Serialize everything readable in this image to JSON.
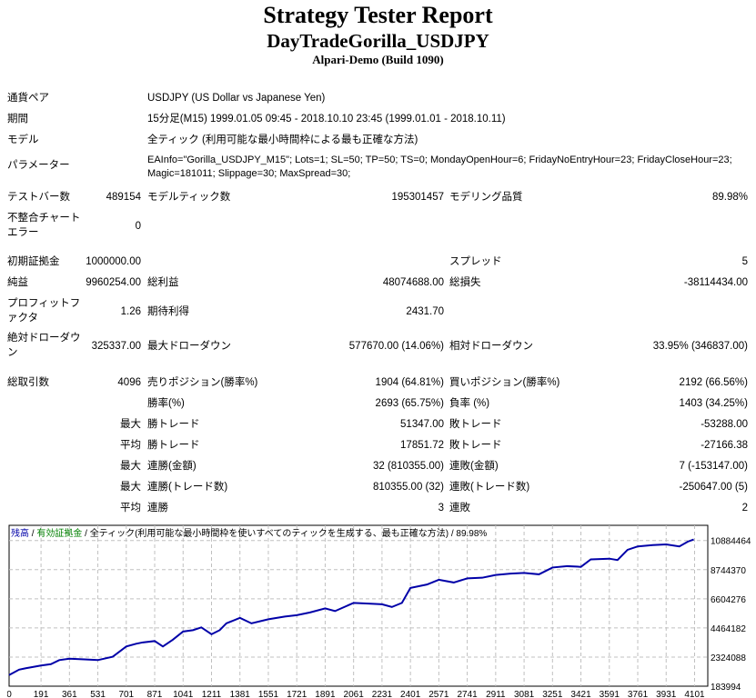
{
  "header": {
    "title": "Strategy Tester Report",
    "ea_name": "DayTradeGorilla_USDJPY",
    "server": "Alpari-Demo (Build 1090)"
  },
  "info": {
    "symbol": {
      "label": "通貨ペア",
      "value": "USDJPY (US Dollar vs Japanese Yen)"
    },
    "period": {
      "label": "期間",
      "value": "15分足(M15) 1999.01.05 09:45 - 2018.10.10 23:45 (1999.01.01 - 2018.10.11)"
    },
    "model": {
      "label": "モデル",
      "value": "全ティック (利用可能な最小時間枠による最も正確な方法)"
    },
    "parameters": {
      "label": "パラメーター",
      "line1": "EAInfo=\"Gorilla_USDJPY_M15\"; Lots=1; SL=50; TP=50; TS=0; MondayOpenHour=6; FridayNoEntryHour=23; FridayCloseHour=23;",
      "line2": "Magic=181011; Slippage=30; MaxSpread=30;"
    }
  },
  "stats": {
    "bars": {
      "label": "テストバー数",
      "value": "489154"
    },
    "ticks": {
      "label": "モデルティック数",
      "value": "195301457"
    },
    "quality": {
      "label": "モデリング品質",
      "value": "89.98%"
    },
    "mismatch": {
      "label1": "不整合チャート",
      "label2": "エラー",
      "value": "0"
    },
    "deposit": {
      "label": "初期証拠金",
      "value": "1000000.00"
    },
    "spread": {
      "label": "スプレッド",
      "value": "5"
    },
    "net_profit": {
      "label": "純益",
      "value": "9960254.00"
    },
    "gross_profit": {
      "label": "総利益",
      "value": "48074688.00"
    },
    "gross_loss": {
      "label": "総損失",
      "value": "-38114434.00"
    },
    "profit_factor": {
      "label1": "プロフィットフ",
      "label2": "ァクタ",
      "value": "1.26"
    },
    "expected_payoff": {
      "label": "期待利得",
      "value": "2431.70"
    },
    "abs_dd": {
      "label1": "絶対ドローダウ",
      "label2": "ン",
      "value": "325337.00"
    },
    "max_dd": {
      "label": "最大ドローダウン",
      "value": "577670.00 (14.06%)"
    },
    "rel_dd": {
      "label": "相対ドローダウン",
      "value": "33.95% (346837.00)"
    },
    "total_trades": {
      "label": "総取引数",
      "value": "4096"
    },
    "short": {
      "label": "売りポジション(勝率%)",
      "value": "1904 (64.81%)"
    },
    "long": {
      "label": "買いポジション(勝率%)",
      "value": "2192 (66.56%)"
    },
    "win_rate": {
      "label": "勝率(%)",
      "value": "2693 (65.75%)"
    },
    "loss_rate": {
      "label": "負率 (%)",
      "value": "1403 (34.25%)"
    },
    "largest_win": {
      "prefix": "最大",
      "label": "勝トレード",
      "value": "51347.00"
    },
    "largest_loss": {
      "label": "敗トレード",
      "value": "-53288.00"
    },
    "avg_win": {
      "prefix": "平均",
      "label": "勝トレード",
      "value": "17851.72"
    },
    "avg_loss": {
      "label": "敗トレード",
      "value": "-27166.38"
    },
    "max_consec_wins": {
      "prefix": "最大",
      "label": "連勝(金額)",
      "value": "32 (810355.00)"
    },
    "max_consec_losses": {
      "label": "連敗(金額)",
      "value": "7 (-153147.00)"
    },
    "max_consec_profit": {
      "prefix": "最大",
      "label": "連勝(トレード数)",
      "value": "810355.00 (32)"
    },
    "max_consec_loss": {
      "label": "連敗(トレード数)",
      "value": "-250647.00 (5)"
    },
    "avg_consec_wins": {
      "prefix": "平均",
      "label": "連勝",
      "value": "3"
    },
    "avg_consec_losses": {
      "label": "連敗",
      "value": "2"
    }
  },
  "chart_data": {
    "type": "line",
    "legend": {
      "balance": "残高",
      "equity": "有効証拠金",
      "model": "全ティック(利用可能な最小時間枠を使いすべてのティックを生成する、最も正確な方法)",
      "quality": "89.98%"
    },
    "colors": {
      "balance": "#0000a8",
      "equity": "#008000",
      "grid": "#c0c0c0"
    },
    "x_ticks": [
      "0",
      "191",
      "361",
      "531",
      "701",
      "871",
      "1041",
      "1211",
      "1381",
      "1551",
      "1721",
      "1891",
      "2061",
      "2231",
      "2401",
      "2571",
      "2741",
      "2911",
      "3081",
      "3251",
      "3421",
      "3591",
      "3761",
      "3931",
      "4101"
    ],
    "y_ticks": [
      "10884464",
      "8744370",
      "6604276",
      "4464182",
      "2324088",
      "183994"
    ],
    "xlim": [
      0,
      4180
    ],
    "ylim": [
      183994,
      12000000
    ],
    "grid": true,
    "series": [
      {
        "x": [
          0,
          60,
          100,
          191,
          250,
          300,
          361,
          450,
          531,
          620,
          701,
          760,
          800,
          871,
          920,
          980,
          1041,
          1100,
          1150,
          1211,
          1260,
          1300,
          1381,
          1450,
          1551,
          1650,
          1721,
          1800,
          1891,
          1950,
          2061,
          2150,
          2231,
          2290,
          2350,
          2401,
          2500,
          2571,
          2660,
          2741,
          2830,
          2911,
          3000,
          3081,
          3170,
          3251,
          3340,
          3421,
          3480,
          3591,
          3640,
          3700,
          3761,
          3850,
          3931,
          4010,
          4060,
          4096
        ],
        "y": [
          1000000,
          1400000,
          1500000,
          1700000,
          1800000,
          2100000,
          2200000,
          2150000,
          2100000,
          2350000,
          3100000,
          3300000,
          3400000,
          3500000,
          3100000,
          3600000,
          4200000,
          4300000,
          4500000,
          4000000,
          4300000,
          4800000,
          5200000,
          4800000,
          5100000,
          5300000,
          5400000,
          5600000,
          5900000,
          5700000,
          6300000,
          6250000,
          6200000,
          6000000,
          6300000,
          7400000,
          7650000,
          8000000,
          7800000,
          8100000,
          8150000,
          8350000,
          8450000,
          8500000,
          8400000,
          8900000,
          9000000,
          8950000,
          9500000,
          9550000,
          9450000,
          10200000,
          10450000,
          10550000,
          10600000,
          10450000,
          10800000,
          10960000
        ]
      }
    ]
  }
}
